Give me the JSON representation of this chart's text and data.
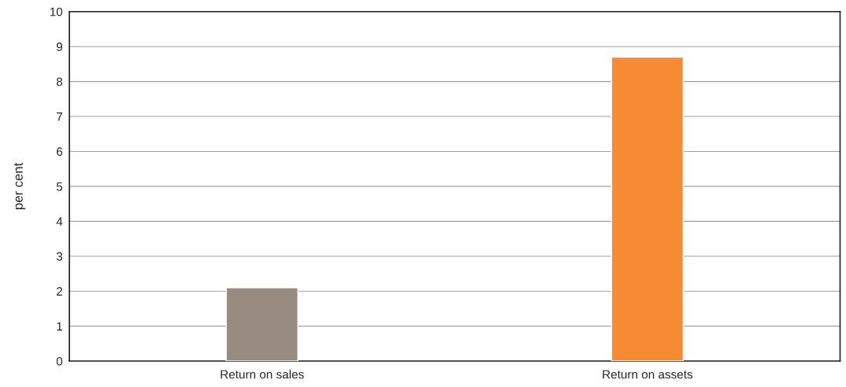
{
  "chart_data": {
    "type": "bar",
    "ylabel": "per cent",
    "categories": [
      "Return on sales",
      "Return on assets"
    ],
    "values": [
      2.1,
      8.7
    ],
    "colors": [
      "#988b80",
      "#f68b33"
    ],
    "ylim": [
      0,
      10
    ],
    "yticks": [
      0,
      1,
      2,
      3,
      4,
      5,
      6,
      7,
      8,
      9,
      10
    ],
    "grid": "y",
    "legend": false
  }
}
